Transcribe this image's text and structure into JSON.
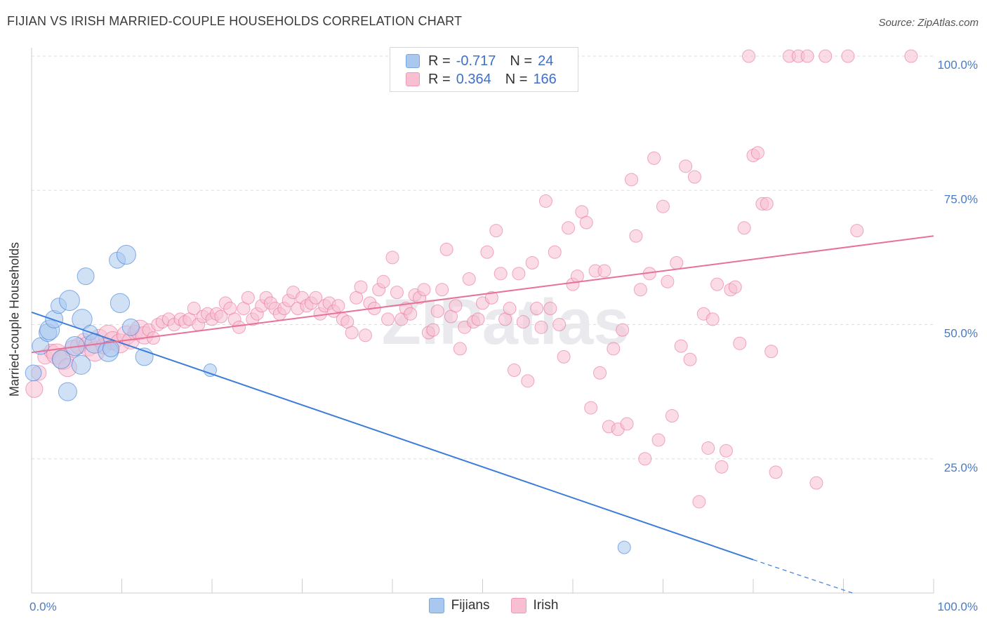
{
  "title": "FIJIAN VS IRISH MARRIED-COUPLE HOUSEHOLDS CORRELATION CHART",
  "source": "Source: ZipAtlas.com",
  "watermark": "ZIPatlas",
  "legend_top": [
    {
      "r_label": "R =",
      "r_value": "-0.717",
      "n_label": "N =",
      "n_value": "24",
      "fill": "#aac8ef",
      "stroke": "#7aa6df"
    },
    {
      "r_label": "R =",
      "r_value": "0.364",
      "n_label": "N =",
      "n_value": "166",
      "fill": "#f7bfd1",
      "stroke": "#ee9ab4"
    }
  ],
  "legend_bottom": [
    {
      "label": "Fijians",
      "fill": "#aac8ef",
      "stroke": "#7aa6df"
    },
    {
      "label": "Irish",
      "fill": "#f7bfd1",
      "stroke": "#ee9ab4"
    }
  ],
  "chart_data": {
    "type": "scatter",
    "xlabel": "",
    "ylabel": "Married-couple Households",
    "xlim": [
      0,
      100
    ],
    "ylim": [
      0,
      100
    ],
    "x_tick_labels": [
      {
        "value": 0,
        "label": "0.0%"
      },
      {
        "value": 100,
        "label": "100.0%"
      }
    ],
    "y_tick_labels": [
      {
        "value": 25,
        "label": "25.0%"
      },
      {
        "value": 50,
        "label": "50.0%"
      },
      {
        "value": 75,
        "label": "75.0%"
      },
      {
        "value": 100,
        "label": "100.0%"
      }
    ],
    "grid": true,
    "legend": "top-center",
    "series": [
      {
        "name": "Fijians",
        "color": "#3b7dd8",
        "fill": "#aac8ef",
        "points": [
          [
            0.2,
            41
          ],
          [
            1.0,
            46
          ],
          [
            1.8,
            48.5
          ],
          [
            2.0,
            49
          ],
          [
            2.5,
            51
          ],
          [
            3.0,
            53.5
          ],
          [
            3.3,
            43.5
          ],
          [
            4.0,
            37.5
          ],
          [
            4.2,
            54.5
          ],
          [
            4.8,
            46
          ],
          [
            5.5,
            42.5
          ],
          [
            5.6,
            51
          ],
          [
            6.0,
            59
          ],
          [
            6.5,
            48.5
          ],
          [
            7.0,
            46.5
          ],
          [
            8.5,
            45
          ],
          [
            8.8,
            45.5
          ],
          [
            9.5,
            62
          ],
          [
            9.8,
            54
          ],
          [
            10.5,
            63
          ],
          [
            11.0,
            49.5
          ],
          [
            12.5,
            44
          ],
          [
            19.8,
            41.5
          ],
          [
            65.7,
            8.5
          ]
        ],
        "trend": {
          "x0": 0,
          "y0": 52.3,
          "x1": 80,
          "y1": 6.2,
          "dash_to_x": 91,
          "dash_to_y": 0
        }
      },
      {
        "name": "Irish",
        "color": "#e8719a",
        "fill": "#f7bfd1",
        "points": [
          [
            0.3,
            38
          ],
          [
            0.8,
            41
          ],
          [
            1.5,
            44
          ],
          [
            2.2,
            45
          ],
          [
            2.8,
            44.5
          ],
          [
            3.5,
            43.5
          ],
          [
            4.0,
            42
          ],
          [
            4.6,
            45.5
          ],
          [
            5.2,
            46
          ],
          [
            5.8,
            47
          ],
          [
            6.3,
            46
          ],
          [
            7.0,
            45
          ],
          [
            7.5,
            47.5
          ],
          [
            8.0,
            46
          ],
          [
            8.5,
            48
          ],
          [
            9.0,
            47
          ],
          [
            9.8,
            46.5
          ],
          [
            10.5,
            48
          ],
          [
            11.0,
            47
          ],
          [
            11.5,
            48.5
          ],
          [
            12.0,
            49
          ],
          [
            12.5,
            48
          ],
          [
            13.0,
            49
          ],
          [
            13.5,
            47.5
          ],
          [
            14.0,
            50
          ],
          [
            14.5,
            50.5
          ],
          [
            15.2,
            51
          ],
          [
            15.8,
            50
          ],
          [
            16.5,
            51
          ],
          [
            17.0,
            50.5
          ],
          [
            17.5,
            51
          ],
          [
            18.0,
            53
          ],
          [
            18.5,
            50
          ],
          [
            19.0,
            51.5
          ],
          [
            19.5,
            52
          ],
          [
            20.0,
            51
          ],
          [
            20.5,
            52
          ],
          [
            21.0,
            51.5
          ],
          [
            21.5,
            54
          ],
          [
            22.0,
            53
          ],
          [
            22.5,
            51
          ],
          [
            23.0,
            49.5
          ],
          [
            23.5,
            53
          ],
          [
            24.0,
            55
          ],
          [
            24.5,
            51
          ],
          [
            25.0,
            52
          ],
          [
            25.5,
            53.5
          ],
          [
            26.0,
            55
          ],
          [
            26.5,
            54
          ],
          [
            27.0,
            53
          ],
          [
            27.5,
            52
          ],
          [
            28.0,
            53
          ],
          [
            28.5,
            54.5
          ],
          [
            29.0,
            56
          ],
          [
            29.5,
            53
          ],
          [
            30.0,
            55
          ],
          [
            30.5,
            53.5
          ],
          [
            31.0,
            54
          ],
          [
            31.5,
            55
          ],
          [
            32.0,
            52
          ],
          [
            32.5,
            53.5
          ],
          [
            33.0,
            54
          ],
          [
            33.5,
            52.5
          ],
          [
            34.0,
            53.5
          ],
          [
            34.5,
            51
          ],
          [
            35.0,
            50.5
          ],
          [
            35.5,
            48.5
          ],
          [
            36.0,
            55
          ],
          [
            36.5,
            57
          ],
          [
            37.0,
            48
          ],
          [
            37.5,
            54
          ],
          [
            38.0,
            53
          ],
          [
            38.5,
            56.5
          ],
          [
            39.0,
            58
          ],
          [
            39.5,
            51
          ],
          [
            40.0,
            62.5
          ],
          [
            40.5,
            56
          ],
          [
            41.0,
            51
          ],
          [
            41.5,
            53
          ],
          [
            42.0,
            52
          ],
          [
            42.5,
            55.5
          ],
          [
            43.0,
            55
          ],
          [
            43.5,
            56.5
          ],
          [
            44.0,
            48.5
          ],
          [
            44.5,
            49
          ],
          [
            45.0,
            52.5
          ],
          [
            45.5,
            56.5
          ],
          [
            46.0,
            64
          ],
          [
            46.5,
            51.5
          ],
          [
            47.0,
            53.5
          ],
          [
            47.5,
            45.5
          ],
          [
            48.0,
            49.5
          ],
          [
            48.5,
            58.5
          ],
          [
            49.0,
            50.5
          ],
          [
            49.5,
            51
          ],
          [
            50.0,
            54
          ],
          [
            50.5,
            63.5
          ],
          [
            51.0,
            55
          ],
          [
            51.5,
            67.5
          ],
          [
            52.0,
            59.5
          ],
          [
            52.5,
            51
          ],
          [
            53.0,
            53
          ],
          [
            53.5,
            41.5
          ],
          [
            54.0,
            59.5
          ],
          [
            54.5,
            50.5
          ],
          [
            55.0,
            39.5
          ],
          [
            55.5,
            61.5
          ],
          [
            56.0,
            53
          ],
          [
            56.5,
            49.5
          ],
          [
            57.0,
            73
          ],
          [
            57.5,
            53
          ],
          [
            58.0,
            63.5
          ],
          [
            58.5,
            50
          ],
          [
            59.0,
            44
          ],
          [
            59.5,
            68
          ],
          [
            60.0,
            57.5
          ],
          [
            60.5,
            59
          ],
          [
            61.0,
            71
          ],
          [
            61.5,
            69
          ],
          [
            62.0,
            34.5
          ],
          [
            62.5,
            60
          ],
          [
            63.0,
            41
          ],
          [
            63.5,
            60
          ],
          [
            64.0,
            31
          ],
          [
            64.5,
            45.5
          ],
          [
            65.0,
            30.5
          ],
          [
            65.5,
            49
          ],
          [
            66.0,
            31.5
          ],
          [
            66.5,
            77
          ],
          [
            67.0,
            66.5
          ],
          [
            67.5,
            56.5
          ],
          [
            68.0,
            25
          ],
          [
            68.5,
            59.5
          ],
          [
            69.0,
            81
          ],
          [
            69.5,
            28.5
          ],
          [
            70.0,
            72
          ],
          [
            70.5,
            58
          ],
          [
            71.0,
            33
          ],
          [
            71.5,
            61.5
          ],
          [
            72.0,
            46
          ],
          [
            72.5,
            79.5
          ],
          [
            73.0,
            43.5
          ],
          [
            73.5,
            77.5
          ],
          [
            74.0,
            17
          ],
          [
            74.5,
            52
          ],
          [
            75.0,
            27
          ],
          [
            75.5,
            51
          ],
          [
            76.0,
            57.5
          ],
          [
            76.5,
            23.5
          ],
          [
            77.0,
            26.5
          ],
          [
            77.5,
            56.5
          ],
          [
            78.0,
            57
          ],
          [
            78.5,
            46.5
          ],
          [
            79.0,
            68
          ],
          [
            79.5,
            100
          ],
          [
            80.0,
            81.5
          ],
          [
            80.5,
            82
          ],
          [
            81.0,
            72.5
          ],
          [
            81.5,
            72.5
          ],
          [
            82.0,
            45
          ],
          [
            82.5,
            22.5
          ],
          [
            84.0,
            100
          ],
          [
            85.0,
            100
          ],
          [
            86.0,
            100
          ],
          [
            87.0,
            20.5
          ],
          [
            88.0,
            100
          ],
          [
            90.5,
            100
          ],
          [
            91.5,
            67.5
          ],
          [
            97.5,
            100
          ]
        ],
        "trend": {
          "x0": 0,
          "y0": 44.8,
          "x1": 100,
          "y1": 66.5
        }
      }
    ]
  }
}
